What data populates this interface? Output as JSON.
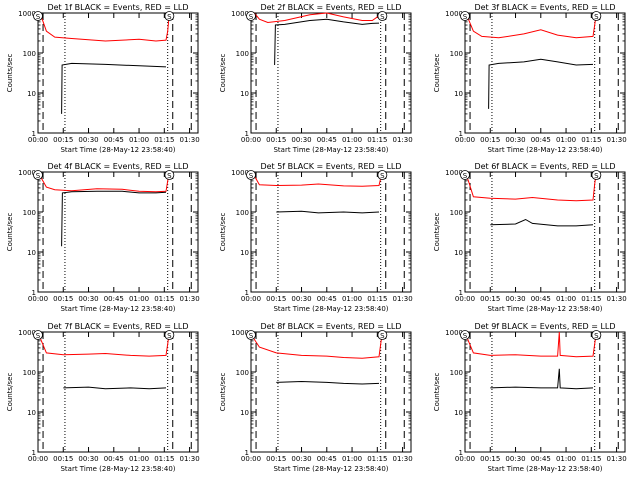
{
  "chart_data": [
    {
      "type": "line",
      "title": "Det 1f BLACK = Events, RED = LLD",
      "ylabel": "Counts/sec",
      "xlabel": "Start Time (28-May-12 23:58:40)",
      "xticks": [
        "00:00",
        "00:15",
        "00:30",
        "00:45",
        "01:00",
        "01:15",
        "01:30"
      ],
      "yscale": "log",
      "ylim": [
        1,
        1000
      ],
      "yticks": [
        "1",
        "10",
        "100",
        "1000"
      ],
      "markers": [
        "S",
        "S"
      ],
      "series": [
        {
          "color": "#ff0000",
          "points": [
            [
              0,
              1000
            ],
            [
              2,
              800
            ],
            [
              5,
              350
            ],
            [
              10,
              250
            ],
            [
              20,
              230
            ],
            [
              40,
              200
            ],
            [
              60,
              220
            ],
            [
              70,
              200
            ],
            [
              76,
              210
            ],
            [
              77,
              350
            ],
            [
              78,
              1000
            ]
          ]
        },
        {
          "color": "#000000",
          "points": [
            [
              14,
              3
            ],
            [
              14.3,
              50
            ],
            [
              20,
              55
            ],
            [
              40,
              52
            ],
            [
              60,
              48
            ],
            [
              76,
              45
            ]
          ]
        }
      ]
    },
    {
      "type": "line",
      "title": "Det 2f BLACK = Events, RED = LLD",
      "ylabel": "Counts/sec",
      "xlabel": "Start Time (28-May-12 23:58:40)",
      "xticks": [
        "00:00",
        "00:15",
        "00:30",
        "00:45",
        "01:00",
        "01:15",
        "01:30"
      ],
      "yscale": "log",
      "ylim": [
        1,
        1000
      ],
      "yticks": [
        "1",
        "10",
        "100",
        "1000"
      ],
      "markers": [
        "S",
        "S"
      ],
      "series": [
        {
          "color": "#ff0000",
          "points": [
            [
              0,
              1000
            ],
            [
              2,
              1000
            ],
            [
              5,
              700
            ],
            [
              10,
              580
            ],
            [
              20,
              650
            ],
            [
              35,
              900
            ],
            [
              45,
              1000
            ],
            [
              55,
              800
            ],
            [
              66,
              650
            ],
            [
              72,
              650
            ],
            [
              76,
              850
            ],
            [
              77,
              1000
            ],
            [
              78,
              1000
            ]
          ]
        },
        {
          "color": "#000000",
          "points": [
            [
              14,
              50
            ],
            [
              14.5,
              500
            ],
            [
              20,
              520
            ],
            [
              35,
              650
            ],
            [
              45,
              700
            ],
            [
              55,
              600
            ],
            [
              66,
              520
            ],
            [
              72,
              550
            ],
            [
              76,
              560
            ]
          ]
        }
      ]
    },
    {
      "type": "line",
      "title": "Det 3f BLACK = Events, RED = LLD",
      "ylabel": "Counts/sec",
      "xlabel": "Start Time (28-May-12 23:58:40)",
      "xticks": [
        "00:00",
        "00:15",
        "00:30",
        "00:45",
        "01:00",
        "01:15",
        "01:30"
      ],
      "yscale": "log",
      "ylim": [
        1,
        1000
      ],
      "yticks": [
        "1",
        "10",
        "100",
        "1000"
      ],
      "markers": [
        "S",
        "S"
      ],
      "series": [
        {
          "color": "#ff0000",
          "points": [
            [
              0,
              1000
            ],
            [
              2,
              700
            ],
            [
              5,
              350
            ],
            [
              10,
              260
            ],
            [
              20,
              240
            ],
            [
              35,
              300
            ],
            [
              45,
              380
            ],
            [
              55,
              280
            ],
            [
              66,
              240
            ],
            [
              76,
              260
            ],
            [
              77,
              500
            ],
            [
              78,
              1000
            ]
          ]
        },
        {
          "color": "#000000",
          "points": [
            [
              14,
              4
            ],
            [
              14.3,
              50
            ],
            [
              20,
              55
            ],
            [
              35,
              60
            ],
            [
              45,
              70
            ],
            [
              55,
              60
            ],
            [
              66,
              50
            ],
            [
              76,
              52
            ]
          ]
        }
      ]
    },
    {
      "type": "line",
      "title": "Det 4f BLACK = Events, RED = LLD",
      "ylabel": "Counts/sec",
      "xlabel": "Start Time (28-May-12 23:58:40)",
      "xticks": [
        "00:00",
        "00:15",
        "00:30",
        "00:45",
        "01:00",
        "01:15",
        "01:30"
      ],
      "yscale": "log",
      "ylim": [
        1,
        1000
      ],
      "yticks": [
        "1",
        "10",
        "100",
        "1000"
      ],
      "markers": [
        "S",
        "S"
      ],
      "series": [
        {
          "color": "#ff0000",
          "points": [
            [
              0,
              1000
            ],
            [
              2,
              700
            ],
            [
              5,
              420
            ],
            [
              10,
              360
            ],
            [
              20,
              340
            ],
            [
              35,
              380
            ],
            [
              50,
              370
            ],
            [
              60,
              330
            ],
            [
              70,
              320
            ],
            [
              76,
              330
            ],
            [
              77,
              600
            ],
            [
              78,
              1000
            ]
          ]
        },
        {
          "color": "#000000",
          "points": [
            [
              14,
              14
            ],
            [
              14.5,
              300
            ],
            [
              20,
              320
            ],
            [
              35,
              330
            ],
            [
              50,
              330
            ],
            [
              60,
              300
            ],
            [
              70,
              300
            ],
            [
              76,
              310
            ]
          ]
        }
      ]
    },
    {
      "type": "line",
      "title": "Det 5f BLACK = Events, RED = LLD",
      "ylabel": "Counts/sec",
      "xlabel": "Start Time (28-May-12 23:58:40)",
      "xticks": [
        "00:00",
        "00:15",
        "00:30",
        "00:45",
        "01:00",
        "01:15",
        "01:30"
      ],
      "yscale": "log",
      "ylim": [
        1,
        1000
      ],
      "yticks": [
        "1",
        "10",
        "100",
        "1000"
      ],
      "markers": [
        "S",
        "S"
      ],
      "series": [
        {
          "color": "#ff0000",
          "points": [
            [
              0,
              1000
            ],
            [
              2,
              800
            ],
            [
              5,
              480
            ],
            [
              15,
              460
            ],
            [
              30,
              470
            ],
            [
              40,
              500
            ],
            [
              55,
              450
            ],
            [
              66,
              440
            ],
            [
              76,
              460
            ],
            [
              77,
              700
            ],
            [
              78,
              1000
            ]
          ]
        },
        {
          "color": "#000000",
          "points": [
            [
              15,
              100
            ],
            [
              30,
              105
            ],
            [
              40,
              95
            ],
            [
              55,
              100
            ],
            [
              66,
              95
            ],
            [
              76,
              100
            ]
          ]
        }
      ]
    },
    {
      "type": "line",
      "title": "Det 6f BLACK = Events, RED = LLD",
      "ylabel": "Counts/sec",
      "xlabel": "Start Time (28-May-12 23:58:40)",
      "xticks": [
        "00:00",
        "00:15",
        "00:30",
        "00:45",
        "01:00",
        "01:15",
        "01:30"
      ],
      "yscale": "log",
      "ylim": [
        1,
        1000
      ],
      "yticks": [
        "1",
        "10",
        "100",
        "1000"
      ],
      "markers": [
        "S",
        "S"
      ],
      "series": [
        {
          "color": "#ff0000",
          "points": [
            [
              0,
              1000
            ],
            [
              2,
              600
            ],
            [
              5,
              240
            ],
            [
              15,
              220
            ],
            [
              30,
              210
            ],
            [
              40,
              230
            ],
            [
              55,
              200
            ],
            [
              66,
              190
            ],
            [
              76,
              200
            ],
            [
              77,
              500
            ],
            [
              78,
              1000
            ]
          ]
        },
        {
          "color": "#000000",
          "points": [
            [
              15,
              48
            ],
            [
              30,
              50
            ],
            [
              36,
              65
            ],
            [
              40,
              52
            ],
            [
              55,
              45
            ],
            [
              66,
              45
            ],
            [
              76,
              48
            ]
          ]
        }
      ]
    },
    {
      "type": "line",
      "title": "Det 7f BLACK = Events, RED = LLD",
      "ylabel": "Counts/sec",
      "xlabel": "Start Time (28-May-12 23:58:40)",
      "xticks": [
        "00:00",
        "00:15",
        "00:30",
        "00:45",
        "01:00",
        "01:15",
        "01:30"
      ],
      "yscale": "log",
      "ylim": [
        1,
        1000
      ],
      "yticks": [
        "1",
        "10",
        "100",
        "1000"
      ],
      "markers": [
        "S",
        "S"
      ],
      "series": [
        {
          "color": "#ff0000",
          "points": [
            [
              0,
              1000
            ],
            [
              2,
              600
            ],
            [
              5,
              300
            ],
            [
              15,
              270
            ],
            [
              30,
              280
            ],
            [
              40,
              290
            ],
            [
              55,
              260
            ],
            [
              66,
              250
            ],
            [
              76,
              260
            ],
            [
              77,
              500
            ],
            [
              78,
              1000
            ]
          ]
        },
        {
          "color": "#000000",
          "points": [
            [
              15,
              40
            ],
            [
              30,
              42
            ],
            [
              40,
              38
            ],
            [
              55,
              40
            ],
            [
              66,
              38
            ],
            [
              76,
              40
            ]
          ]
        }
      ]
    },
    {
      "type": "line",
      "title": "Det 8f BLACK = Events, RED = LLD",
      "ylabel": "Counts/sec",
      "xlabel": "Start Time (28-May-12 23:58:40)",
      "xticks": [
        "00:00",
        "00:15",
        "00:30",
        "00:45",
        "01:00",
        "01:15",
        "01:30"
      ],
      "yscale": "log",
      "ylim": [
        1,
        1000
      ],
      "yticks": [
        "1",
        "10",
        "100",
        "1000"
      ],
      "markers": [
        "S",
        "S"
      ],
      "series": [
        {
          "color": "#ff0000",
          "points": [
            [
              0,
              1000
            ],
            [
              2,
              650
            ],
            [
              5,
              420
            ],
            [
              15,
              300
            ],
            [
              30,
              260
            ],
            [
              45,
              250
            ],
            [
              55,
              230
            ],
            [
              66,
              220
            ],
            [
              76,
              240
            ],
            [
              77,
              500
            ],
            [
              78,
              1000
            ]
          ]
        },
        {
          "color": "#000000",
          "points": [
            [
              15,
              55
            ],
            [
              30,
              58
            ],
            [
              45,
              55
            ],
            [
              55,
              52
            ],
            [
              66,
              50
            ],
            [
              76,
              52
            ]
          ]
        }
      ]
    },
    {
      "type": "line",
      "title": "Det 9f BLACK = Events, RED = LLD",
      "ylabel": "Counts/sec",
      "xlabel": "Start Time (28-May-12 23:58:40)",
      "xticks": [
        "00:00",
        "00:15",
        "00:30",
        "00:45",
        "01:00",
        "01:15",
        "01:30"
      ],
      "yscale": "log",
      "ylim": [
        1,
        1000
      ],
      "yticks": [
        "1",
        "10",
        "100",
        "1000"
      ],
      "markers": [
        "S",
        "S"
      ],
      "series": [
        {
          "color": "#ff0000",
          "points": [
            [
              0,
              1000
            ],
            [
              2,
              600
            ],
            [
              5,
              300
            ],
            [
              15,
              260
            ],
            [
              30,
              270
            ],
            [
              45,
              250
            ],
            [
              55,
              250
            ],
            [
              56,
              1000
            ],
            [
              56.5,
              260
            ],
            [
              66,
              240
            ],
            [
              76,
              250
            ],
            [
              77,
              500
            ],
            [
              78,
              1000
            ]
          ]
        },
        {
          "color": "#000000",
          "points": [
            [
              15,
              40
            ],
            [
              30,
              42
            ],
            [
              45,
              40
            ],
            [
              55,
              40
            ],
            [
              56,
              120
            ],
            [
              56.5,
              40
            ],
            [
              66,
              38
            ],
            [
              76,
              40
            ]
          ]
        }
      ]
    }
  ]
}
